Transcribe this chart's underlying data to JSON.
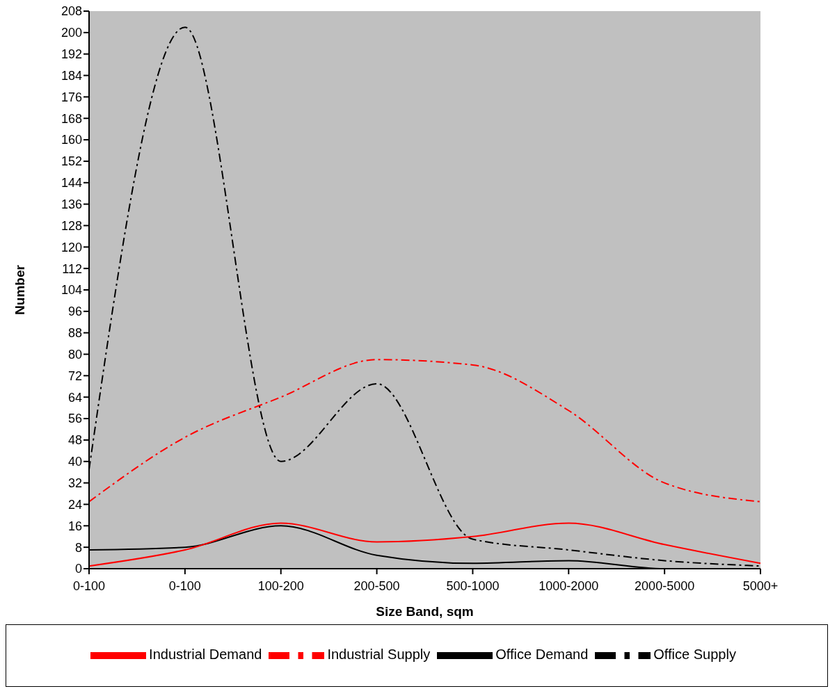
{
  "chart_data": {
    "type": "line",
    "xlabel": "Size Band, sqm",
    "ylabel": "Number",
    "categories": [
      "0-100",
      "0-100",
      "100-200",
      "200-500",
      "500-1000",
      "1000-2000",
      "2000-5000",
      "5000+"
    ],
    "series": [
      {
        "name": "Office Demand",
        "color": "#000000",
        "line_style": "solid",
        "values": [
          7,
          8,
          16,
          5,
          2,
          3,
          0,
          0
        ]
      },
      {
        "name": "Office Supply",
        "color": "#000000",
        "line_style": "dashdot",
        "values": [
          37,
          202,
          40,
          69,
          11,
          7,
          3,
          1
        ]
      },
      {
        "name": "Industrial Demand",
        "color": "#ff0000",
        "line_style": "solid",
        "values": [
          1,
          7,
          17,
          10,
          12,
          17,
          9,
          2
        ]
      },
      {
        "name": "Industrial Supply",
        "color": "#ff0000",
        "line_style": "dashdot",
        "values": [
          25,
          49,
          64,
          78,
          76,
          59,
          32,
          25
        ]
      }
    ],
    "ylim": [
      0,
      208
    ],
    "yticks": [
      0,
      8,
      16,
      24,
      32,
      40,
      48,
      56,
      64,
      72,
      80,
      88,
      96,
      104,
      112,
      120,
      128,
      136,
      144,
      152,
      160,
      168,
      176,
      184,
      192,
      200,
      208
    ],
    "grid": false,
    "legend": "bottom",
    "marker": "none"
  }
}
